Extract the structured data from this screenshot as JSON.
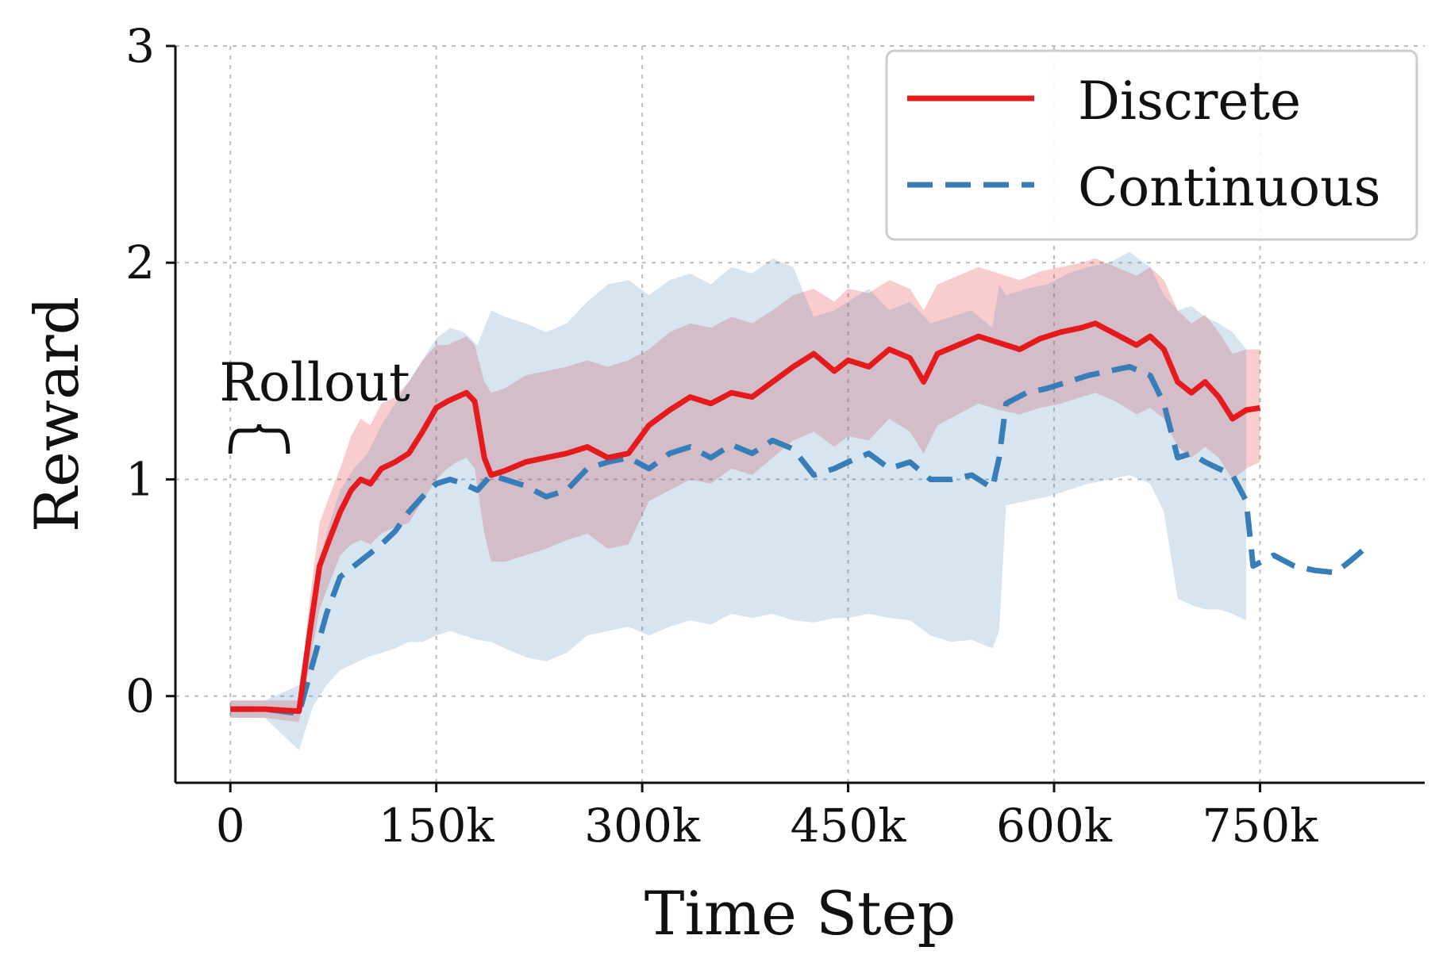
{
  "chart_data": {
    "type": "line",
    "title": "",
    "xlabel": "Time Step",
    "ylabel": "Reward",
    "xlim": [
      -40000,
      870000
    ],
    "ylim": [
      -0.4,
      3.0
    ],
    "grid": true,
    "legend_position": "top-right",
    "x_ticks": [
      {
        "value": 0,
        "label": "0"
      },
      {
        "value": 150000,
        "label": "150k"
      },
      {
        "value": 300000,
        "label": "300k"
      },
      {
        "value": 450000,
        "label": "450k"
      },
      {
        "value": 600000,
        "label": "600k"
      },
      {
        "value": 750000,
        "label": "750k"
      }
    ],
    "y_ticks": [
      {
        "value": 0,
        "label": "0"
      },
      {
        "value": 1,
        "label": "1"
      },
      {
        "value": 2,
        "label": "2"
      },
      {
        "value": 3,
        "label": "3"
      }
    ],
    "annotations": [
      {
        "text": "Rollout",
        "x_range": [
          0,
          42000
        ]
      }
    ],
    "series": [
      {
        "name": "Discrete",
        "color": "#e41a1c",
        "line_style": "solid",
        "x": [
          0,
          25000,
          50000,
          58000,
          65000,
          72000,
          80000,
          88000,
          95000,
          102000,
          110000,
          120000,
          130000,
          140000,
          150000,
          158000,
          165000,
          172000,
          178000,
          185000,
          190000,
          200000,
          215000,
          230000,
          245000,
          260000,
          275000,
          290000,
          305000,
          320000,
          335000,
          350000,
          365000,
          380000,
          395000,
          410000,
          425000,
          440000,
          450000,
          465000,
          480000,
          495000,
          505000,
          515000,
          530000,
          545000,
          560000,
          575000,
          590000,
          605000,
          620000,
          630000,
          645000,
          660000,
          670000,
          680000,
          690000,
          700000,
          710000,
          720000,
          730000,
          740000,
          750000
        ],
        "y": [
          -0.06,
          -0.06,
          -0.07,
          0.3,
          0.6,
          0.72,
          0.85,
          0.95,
          1.0,
          0.98,
          1.05,
          1.08,
          1.12,
          1.22,
          1.33,
          1.36,
          1.38,
          1.4,
          1.36,
          1.1,
          1.02,
          1.04,
          1.08,
          1.1,
          1.12,
          1.15,
          1.1,
          1.12,
          1.25,
          1.32,
          1.38,
          1.35,
          1.4,
          1.38,
          1.45,
          1.52,
          1.58,
          1.5,
          1.55,
          1.52,
          1.6,
          1.56,
          1.45,
          1.58,
          1.62,
          1.66,
          1.63,
          1.6,
          1.65,
          1.68,
          1.7,
          1.72,
          1.67,
          1.62,
          1.66,
          1.6,
          1.45,
          1.4,
          1.45,
          1.38,
          1.28,
          1.32,
          1.33
        ],
        "band_lower": [
          -0.1,
          -0.1,
          -0.12,
          0.15,
          0.4,
          0.52,
          0.65,
          0.7,
          0.72,
          0.7,
          0.75,
          0.78,
          0.8,
          0.9,
          1.0,
          1.05,
          1.08,
          1.1,
          1.05,
          0.75,
          0.62,
          0.62,
          0.65,
          0.68,
          0.72,
          0.75,
          0.68,
          0.7,
          0.9,
          0.95,
          1.0,
          0.98,
          1.05,
          1.02,
          1.1,
          1.18,
          1.22,
          1.15,
          1.2,
          1.18,
          1.28,
          1.22,
          1.12,
          1.25,
          1.3,
          1.35,
          1.32,
          1.3,
          1.33,
          1.35,
          1.38,
          1.4,
          1.36,
          1.3,
          1.33,
          1.28,
          1.15,
          1.1,
          1.15,
          1.1,
          1.0,
          1.05,
          1.08
        ],
        "band_upper": [
          -0.02,
          -0.02,
          -0.02,
          0.45,
          0.8,
          0.92,
          1.05,
          1.2,
          1.28,
          1.25,
          1.35,
          1.38,
          1.45,
          1.55,
          1.62,
          1.62,
          1.64,
          1.66,
          1.62,
          1.45,
          1.4,
          1.42,
          1.48,
          1.5,
          1.52,
          1.55,
          1.52,
          1.55,
          1.6,
          1.68,
          1.72,
          1.7,
          1.75,
          1.72,
          1.78,
          1.85,
          1.88,
          1.82,
          1.88,
          1.86,
          1.92,
          1.88,
          1.78,
          1.9,
          1.94,
          1.98,
          1.95,
          1.92,
          1.96,
          1.98,
          2.0,
          2.02,
          1.98,
          1.94,
          1.98,
          1.92,
          1.78,
          1.72,
          1.76,
          1.68,
          1.58,
          1.6,
          1.6
        ]
      },
      {
        "name": "Continuous",
        "color": "#377eb8",
        "line_style": "dashed",
        "x": [
          0,
          25000,
          50000,
          60000,
          70000,
          80000,
          90000,
          100000,
          110000,
          120000,
          130000,
          140000,
          150000,
          160000,
          170000,
          180000,
          190000,
          200000,
          215000,
          230000,
          245000,
          260000,
          275000,
          290000,
          305000,
          320000,
          335000,
          350000,
          365000,
          380000,
          395000,
          410000,
          425000,
          440000,
          450000,
          465000,
          480000,
          495000,
          510000,
          525000,
          540000,
          555000,
          560000,
          565000,
          580000,
          595000,
          610000,
          625000,
          640000,
          655000,
          670000,
          680000,
          690000,
          700000,
          710000,
          720000,
          730000,
          740000,
          745000,
          760000,
          775000,
          790000,
          805000,
          815000,
          830000
        ],
        "y": [
          -0.06,
          -0.06,
          -0.08,
          0.15,
          0.38,
          0.55,
          0.6,
          0.65,
          0.7,
          0.76,
          0.85,
          0.92,
          0.98,
          1.0,
          0.98,
          0.95,
          1.02,
          1.0,
          0.97,
          0.92,
          0.95,
          1.05,
          1.08,
          1.1,
          1.05,
          1.12,
          1.15,
          1.1,
          1.16,
          1.12,
          1.18,
          1.14,
          1.02,
          1.05,
          1.08,
          1.12,
          1.05,
          1.08,
          1.0,
          1.0,
          1.02,
          0.96,
          1.1,
          1.35,
          1.4,
          1.42,
          1.45,
          1.48,
          1.5,
          1.52,
          1.48,
          1.35,
          1.1,
          1.12,
          1.08,
          1.05,
          1.02,
          0.9,
          0.6,
          0.65,
          0.6,
          0.58,
          0.57,
          0.62,
          0.7
        ],
        "band_lower": [
          -0.1,
          -0.1,
          -0.25,
          -0.05,
          0.05,
          0.12,
          0.15,
          0.18,
          0.2,
          0.22,
          0.25,
          0.25,
          0.28,
          0.3,
          0.28,
          0.26,
          0.25,
          0.22,
          0.18,
          0.16,
          0.2,
          0.28,
          0.3,
          0.32,
          0.28,
          0.32,
          0.35,
          0.33,
          0.38,
          0.36,
          0.38,
          0.35,
          0.34,
          0.36,
          0.36,
          0.38,
          0.36,
          0.35,
          0.28,
          0.25,
          0.26,
          0.22,
          0.3,
          0.88,
          0.9,
          0.92,
          0.95,
          0.98,
          1.0,
          1.02,
          0.98,
          0.85,
          0.45,
          0.42,
          0.4,
          0.4,
          0.38,
          0.35,
          null,
          null,
          null,
          null,
          null,
          null,
          null
        ],
        "band_upper": [
          -0.02,
          -0.02,
          0.05,
          0.45,
          0.75,
          0.95,
          1.05,
          1.12,
          1.25,
          1.35,
          1.45,
          1.55,
          1.65,
          1.7,
          1.68,
          1.62,
          1.78,
          1.75,
          1.72,
          1.68,
          1.72,
          1.82,
          1.9,
          1.92,
          1.85,
          1.92,
          1.95,
          1.9,
          1.98,
          1.95,
          2.02,
          1.98,
          1.75,
          1.78,
          1.82,
          1.88,
          1.78,
          1.82,
          1.72,
          1.75,
          1.78,
          1.7,
          1.9,
          1.85,
          1.88,
          1.9,
          1.95,
          1.98,
          2.0,
          2.05,
          1.98,
          1.85,
          1.78,
          1.8,
          1.75,
          1.72,
          1.68,
          1.6,
          null,
          null,
          null,
          null,
          null,
          null,
          null
        ]
      }
    ]
  }
}
